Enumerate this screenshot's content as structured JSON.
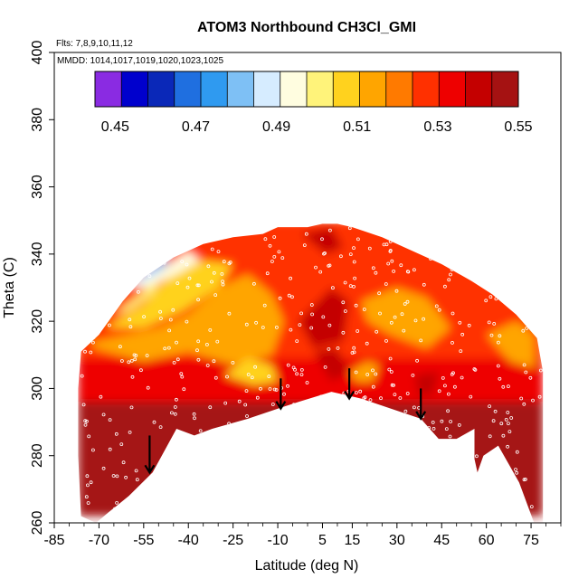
{
  "chart_data": {
    "type": "heatmap",
    "title": "ATOM3 Northbound CH3Cl_GMI",
    "annotations": {
      "flights": "Flts: 7,8,9,10,11,12",
      "dates": "MMDD: 1014,1017,1019,1020,1023,1025"
    },
    "xlabel": "Latitude (deg N)",
    "ylabel": "Theta (C)",
    "xlim": [
      -85,
      85
    ],
    "ylim": [
      260,
      400
    ],
    "x_ticks": [
      -85,
      -70,
      -55,
      -40,
      -25,
      -10,
      5,
      15,
      30,
      45,
      60,
      75
    ],
    "y_ticks": [
      260,
      280,
      300,
      320,
      340,
      360,
      380,
      400
    ],
    "colorbar": {
      "min": 0.445,
      "max": 0.55,
      "ticks": [
        0.45,
        0.47,
        0.49,
        0.51,
        0.53,
        0.55
      ],
      "tick_labels": [
        "0.45",
        "0.47",
        "0.49",
        "0.51",
        "0.53",
        "0.55"
      ],
      "colors": [
        "#8a2be2",
        "#0000cd",
        "#0a28b8",
        "#1f6fe0",
        "#2f9af0",
        "#7ec0f5",
        "#d6ecff",
        "#fffde0",
        "#fff37a",
        "#ffd21e",
        "#ffa500",
        "#ff7a00",
        "#ff3000",
        "#ee0000",
        "#c40000",
        "#a51212"
      ]
    },
    "upper_boundary": [
      [
        -76,
        311
      ],
      [
        -70,
        316
      ],
      [
        -62,
        326
      ],
      [
        -55,
        333
      ],
      [
        -45,
        339
      ],
      [
        -35,
        343
      ],
      [
        -25,
        345
      ],
      [
        -15,
        346
      ],
      [
        -10,
        348
      ],
      [
        0,
        348
      ],
      [
        5,
        349
      ],
      [
        10,
        349
      ],
      [
        15,
        348
      ],
      [
        25,
        345
      ],
      [
        35,
        341
      ],
      [
        45,
        337
      ],
      [
        55,
        332
      ],
      [
        62,
        328
      ],
      [
        70,
        322
      ],
      [
        77,
        315
      ],
      [
        79,
        305
      ]
    ],
    "lower_boundary": [
      [
        79,
        260
      ],
      [
        76,
        260
      ],
      [
        71,
        272
      ],
      [
        64,
        283
      ],
      [
        59,
        280
      ],
      [
        57,
        275
      ],
      [
        56,
        279
      ],
      [
        56,
        288
      ],
      [
        50,
        285
      ],
      [
        44,
        285
      ],
      [
        38,
        291
      ],
      [
        28,
        294
      ],
      [
        18,
        297
      ],
      [
        8,
        299
      ],
      [
        -3,
        296
      ],
      [
        -10,
        294
      ],
      [
        -20,
        291
      ],
      [
        -32,
        288
      ],
      [
        -38,
        286
      ],
      [
        -44,
        288
      ],
      [
        -52,
        275
      ],
      [
        -60,
        268
      ],
      [
        -67,
        263
      ],
      [
        -71,
        260
      ],
      [
        -76,
        262
      ],
      [
        -77,
        280
      ],
      [
        -77,
        300
      ],
      [
        -76,
        311
      ]
    ],
    "regions": [
      {
        "value": 0.548,
        "polygon": [
          [
            -77,
            262
          ],
          [
            79,
            262
          ],
          [
            79,
            300
          ],
          [
            -77,
            300
          ]
        ]
      },
      {
        "value": 0.535,
        "polygon": [
          [
            -77,
            296
          ],
          [
            79,
            296
          ],
          [
            79,
            312
          ],
          [
            -77,
            312
          ]
        ]
      },
      {
        "value": 0.525,
        "polygon": [
          [
            -77,
            309
          ],
          [
            79,
            309
          ],
          [
            79,
            350
          ],
          [
            -77,
            350
          ]
        ]
      },
      {
        "value": 0.516,
        "polygon": [
          [
            -72,
            314
          ],
          [
            -50,
            318
          ],
          [
            -40,
            322
          ],
          [
            -30,
            330
          ],
          [
            -20,
            334
          ],
          [
            -12,
            328
          ],
          [
            -8,
            320
          ],
          [
            -12,
            310
          ],
          [
            -25,
            307
          ],
          [
            -40,
            311
          ],
          [
            -55,
            308
          ],
          [
            -72,
            312
          ]
        ]
      },
      {
        "value": 0.51,
        "polygon": [
          [
            -68,
            318
          ],
          [
            -55,
            325
          ],
          [
            -45,
            335
          ],
          [
            -35,
            338
          ],
          [
            -25,
            337
          ],
          [
            -30,
            330
          ],
          [
            -42,
            323
          ],
          [
            -55,
            318
          ]
        ]
      },
      {
        "value": 0.503,
        "polygon": [
          [
            -65,
            322
          ],
          [
            -55,
            329
          ],
          [
            -48,
            334
          ],
          [
            -52,
            328
          ],
          [
            -60,
            323
          ]
        ]
      },
      {
        "value": 0.51,
        "polygon": [
          [
            -28,
            304
          ],
          [
            -20,
            309
          ],
          [
            -12,
            307
          ],
          [
            -10,
            302
          ],
          [
            -18,
            301
          ]
        ]
      },
      {
        "value": 0.516,
        "polygon": [
          [
            14,
            305
          ],
          [
            20,
            308
          ],
          [
            24,
            307
          ],
          [
            22,
            302
          ],
          [
            16,
            302
          ]
        ]
      },
      {
        "value": 0.516,
        "polygon": [
          [
            18,
            326
          ],
          [
            30,
            330
          ],
          [
            40,
            327
          ],
          [
            48,
            318
          ],
          [
            40,
            312
          ],
          [
            28,
            316
          ],
          [
            20,
            320
          ]
        ]
      },
      {
        "value": 0.512,
        "polygon": [
          [
            60,
            316
          ],
          [
            70,
            320
          ],
          [
            76,
            316
          ],
          [
            76,
            306
          ],
          [
            68,
            308
          ]
        ]
      },
      {
        "value": 0.538,
        "polygon": [
          [
            -3,
            320
          ],
          [
            8,
            330
          ],
          [
            14,
            326
          ],
          [
            12,
            314
          ],
          [
            2,
            312
          ]
        ]
      },
      {
        "value": 0.543,
        "polygon": [
          [
            2,
            311
          ],
          [
            10,
            312
          ],
          [
            14,
            305
          ],
          [
            8,
            302
          ]
        ]
      },
      {
        "value": 0.543,
        "polygon": [
          [
            36,
            304
          ],
          [
            44,
            305
          ],
          [
            42,
            298
          ],
          [
            37,
            298
          ]
        ]
      },
      {
        "value": 0.538,
        "polygon": [
          [
            -2,
            346
          ],
          [
            8,
            348
          ],
          [
            12,
            342
          ],
          [
            6,
            340
          ]
        ]
      },
      {
        "value": 0.497,
        "polygon": [
          [
            -60,
            330
          ],
          [
            -48,
            336
          ],
          [
            -40,
            341
          ],
          [
            -36,
            338
          ],
          [
            -44,
            334
          ],
          [
            -54,
            330
          ]
        ]
      },
      {
        "value": 0.488,
        "polygon": [
          [
            -60,
            331
          ],
          [
            -53,
            336
          ],
          [
            -48,
            338
          ],
          [
            -50,
            334
          ],
          [
            -56,
            331
          ]
        ]
      },
      {
        "value": 0.478,
        "polygon": [
          [
            -57,
            333
          ],
          [
            -50,
            338
          ],
          [
            -46,
            340
          ],
          [
            -48,
            336
          ]
        ]
      }
    ],
    "arrows": [
      {
        "lat": -53,
        "theta_start": 286,
        "theta_end": 275
      },
      {
        "lat": -9,
        "theta_start": 303,
        "theta_end": 294
      },
      {
        "lat": 14,
        "theta_start": 306,
        "theta_end": 297
      },
      {
        "lat": 38,
        "theta_start": 300,
        "theta_end": 291
      }
    ]
  }
}
